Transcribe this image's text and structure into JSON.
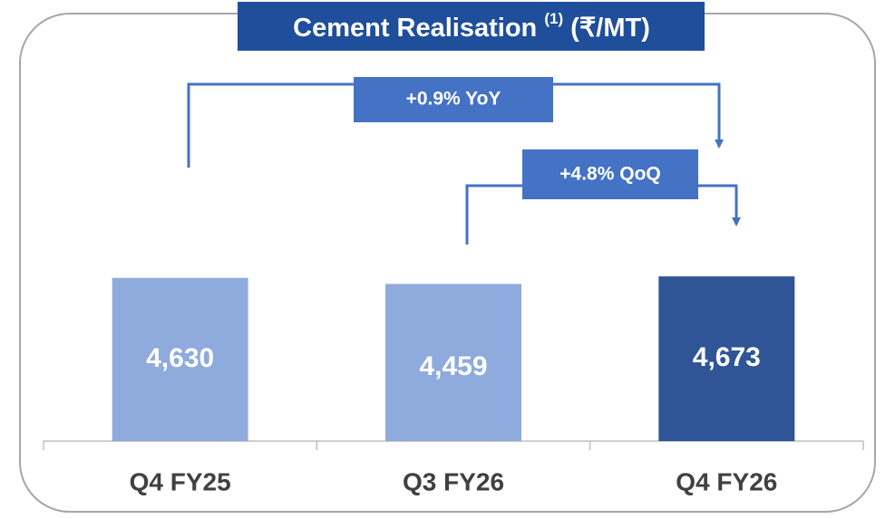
{
  "chart_data": {
    "type": "bar",
    "title": "Cement Realisation",
    "title_note": "(1)",
    "unit": "(₹/MT)",
    "categories": [
      "Q4 FY25",
      "Q3 FY26",
      "Q4 FY26"
    ],
    "values": [
      4630,
      4459,
      4673
    ],
    "value_labels": [
      "4,630",
      "4,459",
      "4,673"
    ],
    "colors": [
      "#8faadc",
      "#8faadc",
      "#2f5597"
    ],
    "ylim": [
      0,
      12000
    ],
    "annotations": [
      "+0.9%  YoY",
      "+4.8% QoQ"
    ]
  }
}
